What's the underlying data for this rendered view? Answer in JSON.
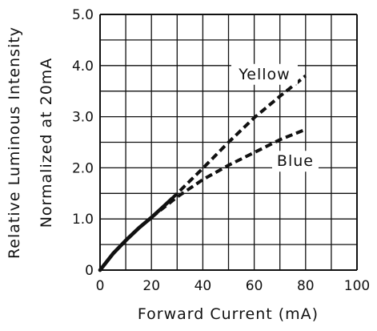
{
  "chart_data": {
    "type": "line",
    "xlabel": "Forward Current (mA)",
    "ylabel_lines": [
      "Relative Luminous Intensity",
      "Normalized at 20mA"
    ],
    "xlim": [
      0,
      100
    ],
    "ylim": [
      0,
      5
    ],
    "x_ticks": [
      0,
      20,
      40,
      60,
      80,
      100
    ],
    "y_ticks": [
      0,
      1,
      2,
      3,
      4,
      5
    ],
    "x_tick_labels": [
      "0",
      "20",
      "40",
      "60",
      "80",
      "100"
    ],
    "y_tick_labels": [
      "0",
      "1.0",
      "2.0",
      "3.0",
      "4.0",
      "5.0"
    ],
    "x_grid_step": 10,
    "y_grid_step": 0.5,
    "grid": true,
    "series": [
      {
        "name": "Yellow",
        "style": "solid-then-dashed",
        "solid_until_x": 28,
        "x": [
          0,
          5,
          10,
          15,
          20,
          25,
          28,
          40,
          50,
          60,
          70,
          80
        ],
        "values": [
          0,
          0.32,
          0.58,
          0.82,
          1.03,
          1.26,
          1.4,
          1.99,
          2.5,
          2.98,
          3.4,
          3.8
        ]
      },
      {
        "name": "Blue",
        "style": "solid-then-dashed",
        "solid_until_x": 20,
        "x": [
          0,
          5,
          10,
          15,
          20,
          30,
          40,
          50,
          60,
          70,
          80
        ],
        "values": [
          0,
          0.32,
          0.58,
          0.82,
          1.03,
          1.43,
          1.77,
          2.05,
          2.3,
          2.55,
          2.75
        ]
      }
    ],
    "annotations": [
      {
        "text": "Yellow",
        "x": 64,
        "y": 3.75
      },
      {
        "text": "Blue",
        "x": 76,
        "y": 2.05
      }
    ],
    "colors": {
      "line": "#111111",
      "grid": "#111111",
      "background": "#ffffff"
    }
  }
}
